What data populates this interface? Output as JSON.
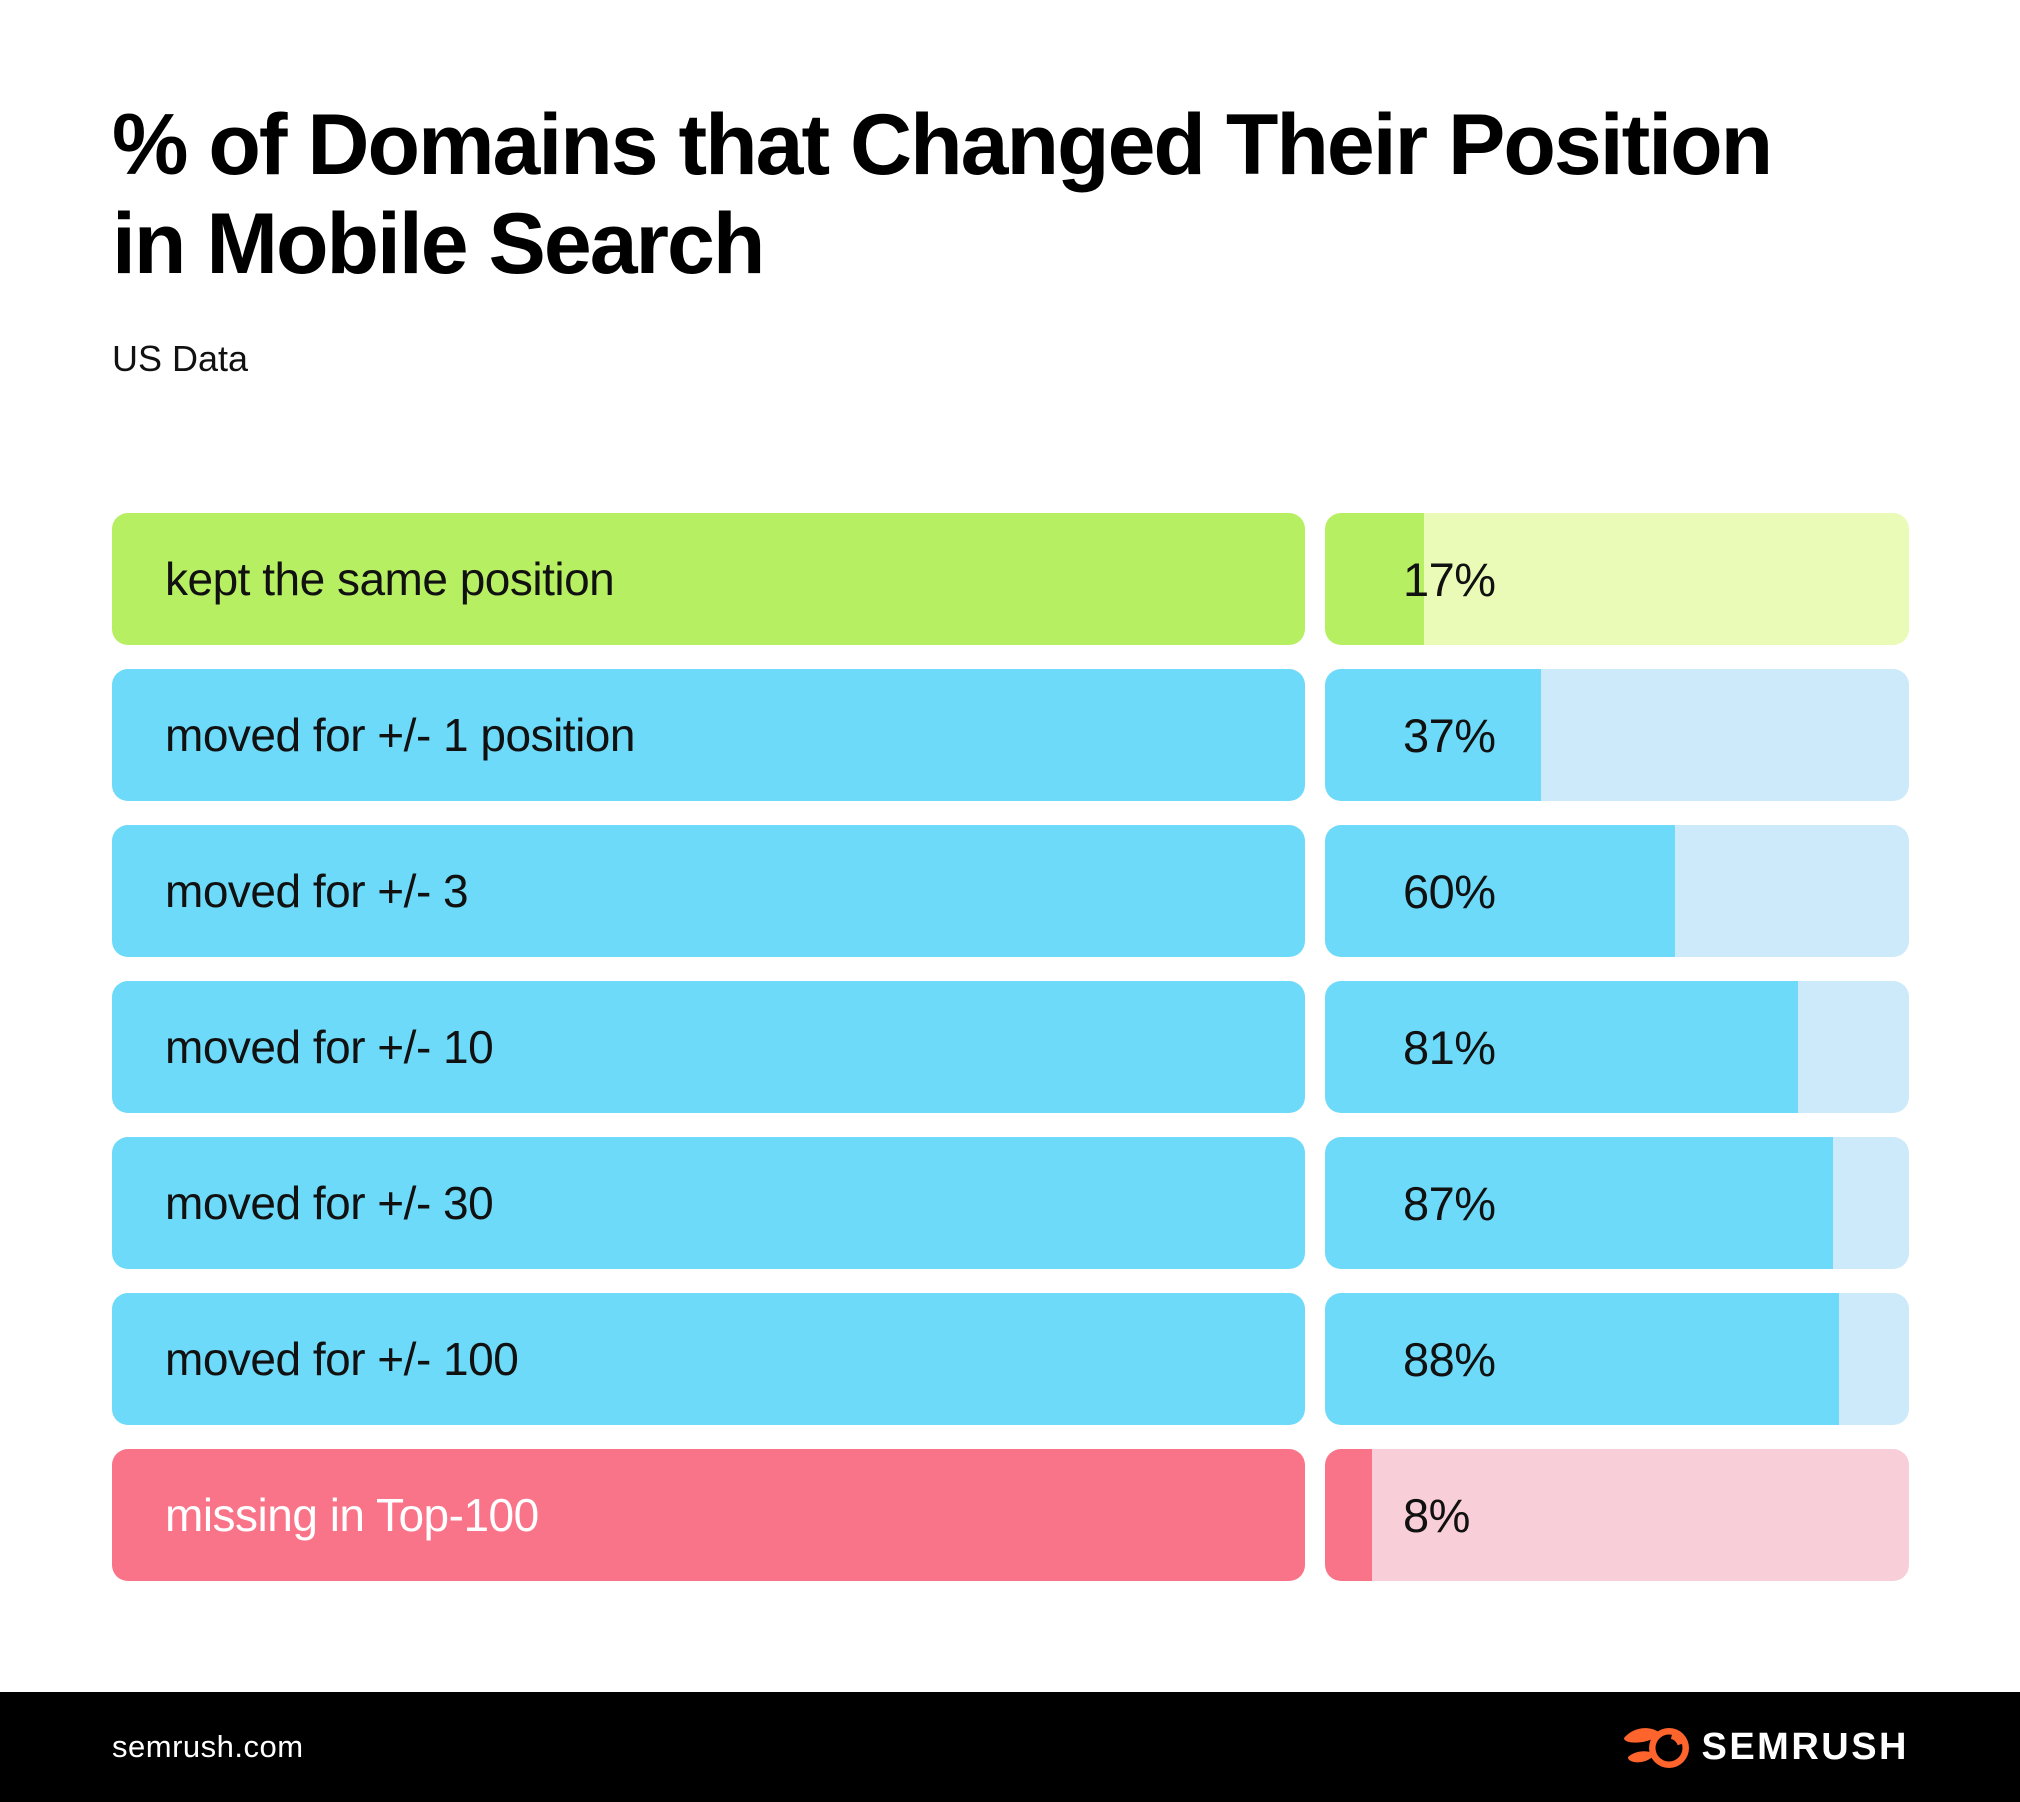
{
  "header": {
    "title_lines": [
      "% of Domains that Changed Their Position",
      "in Mobile Search"
    ],
    "subtitle": "US Data"
  },
  "chart_data": {
    "type": "bar",
    "orientation": "horizontal",
    "unit": "%",
    "value_range": [
      0,
      100
    ],
    "categories": [
      "kept the same position",
      "moved for +/- 1 position",
      "moved for +/- 3",
      "moved for +/- 10",
      "moved for +/- 30",
      "moved for +/- 100",
      "missing in Top-100"
    ],
    "values": [
      17,
      37,
      60,
      81,
      87,
      88,
      8
    ],
    "rows": [
      {
        "label": "kept the same position",
        "value": 17,
        "display": "17%",
        "theme": "green"
      },
      {
        "label": "moved for +/- 1 position",
        "value": 37,
        "display": "37%",
        "theme": "blue"
      },
      {
        "label": "moved for +/- 3",
        "value": 60,
        "display": "60%",
        "theme": "blue"
      },
      {
        "label": "moved for +/- 10",
        "value": 81,
        "display": "81%",
        "theme": "blue"
      },
      {
        "label": "moved for +/- 30",
        "value": 87,
        "display": "87%",
        "theme": "blue"
      },
      {
        "label": "moved for +/- 100",
        "value": 88,
        "display": "88%",
        "theme": "blue"
      },
      {
        "label": "missing in Top-100",
        "value": 8,
        "display": "8%",
        "theme": "red"
      }
    ],
    "palette": {
      "green": {
        "solid": "#B6EF62",
        "light": "#E9FBB7",
        "label_ink": "#111111"
      },
      "blue": {
        "solid": "#6CDAF8",
        "light": "#CDEAFA",
        "label_ink": "#111111"
      },
      "red": {
        "solid": "#FA7489",
        "light": "#F8CFD8",
        "label_ink": "#FFFFFF"
      }
    }
  },
  "footer": {
    "site": "semrush.com",
    "brand": "SEMRUSH",
    "brand_color": "#FF642D"
  }
}
